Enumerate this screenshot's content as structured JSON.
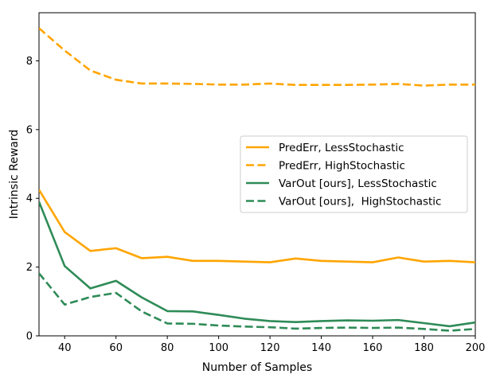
{
  "chart_data": {
    "type": "line",
    "title": "",
    "xlabel": "Number of Samples",
    "ylabel": "Intrinsic Reward",
    "xlim": [
      30,
      200
    ],
    "ylim": [
      0,
      9.4
    ],
    "xticks": [
      40,
      60,
      80,
      100,
      120,
      140,
      160,
      180,
      200
    ],
    "yticks": [
      0,
      2,
      4,
      6,
      8
    ],
    "grid": false,
    "legend_position": "center-right",
    "x": [
      30,
      40,
      50,
      60,
      70,
      80,
      90,
      100,
      110,
      120,
      130,
      140,
      150,
      160,
      170,
      180,
      190,
      200
    ],
    "series": [
      {
        "name": "PredErr, LessStochastic",
        "color": "#FFA500",
        "dash": "solid",
        "values": [
          4.25,
          3.02,
          2.47,
          2.55,
          2.26,
          2.3,
          2.18,
          2.18,
          2.16,
          2.14,
          2.25,
          2.18,
          2.16,
          2.14,
          2.28,
          2.16,
          2.18,
          2.14
        ]
      },
      {
        "name": "PredErr, HighStochastic",
        "color": "#FFA500",
        "dash": "dashed",
        "values": [
          8.95,
          8.3,
          7.72,
          7.45,
          7.34,
          7.34,
          7.33,
          7.31,
          7.31,
          7.34,
          7.3,
          7.3,
          7.3,
          7.31,
          7.33,
          7.28,
          7.31,
          7.31
        ]
      },
      {
        "name": "VarOut [ours], LessStochastic",
        "color": "#2E8B57",
        "dash": "solid",
        "values": [
          3.9,
          2.03,
          1.38,
          1.6,
          1.12,
          0.72,
          0.71,
          0.61,
          0.5,
          0.43,
          0.4,
          0.43,
          0.45,
          0.44,
          0.46,
          0.37,
          0.28,
          0.39
        ]
      },
      {
        "name": "VarOut [ours],  HighStochastic",
        "color": "#2E8B57",
        "dash": "dashed",
        "values": [
          1.82,
          0.91,
          1.13,
          1.25,
          0.71,
          0.36,
          0.35,
          0.3,
          0.27,
          0.25,
          0.21,
          0.23,
          0.24,
          0.23,
          0.24,
          0.2,
          0.15,
          0.2
        ]
      }
    ]
  }
}
